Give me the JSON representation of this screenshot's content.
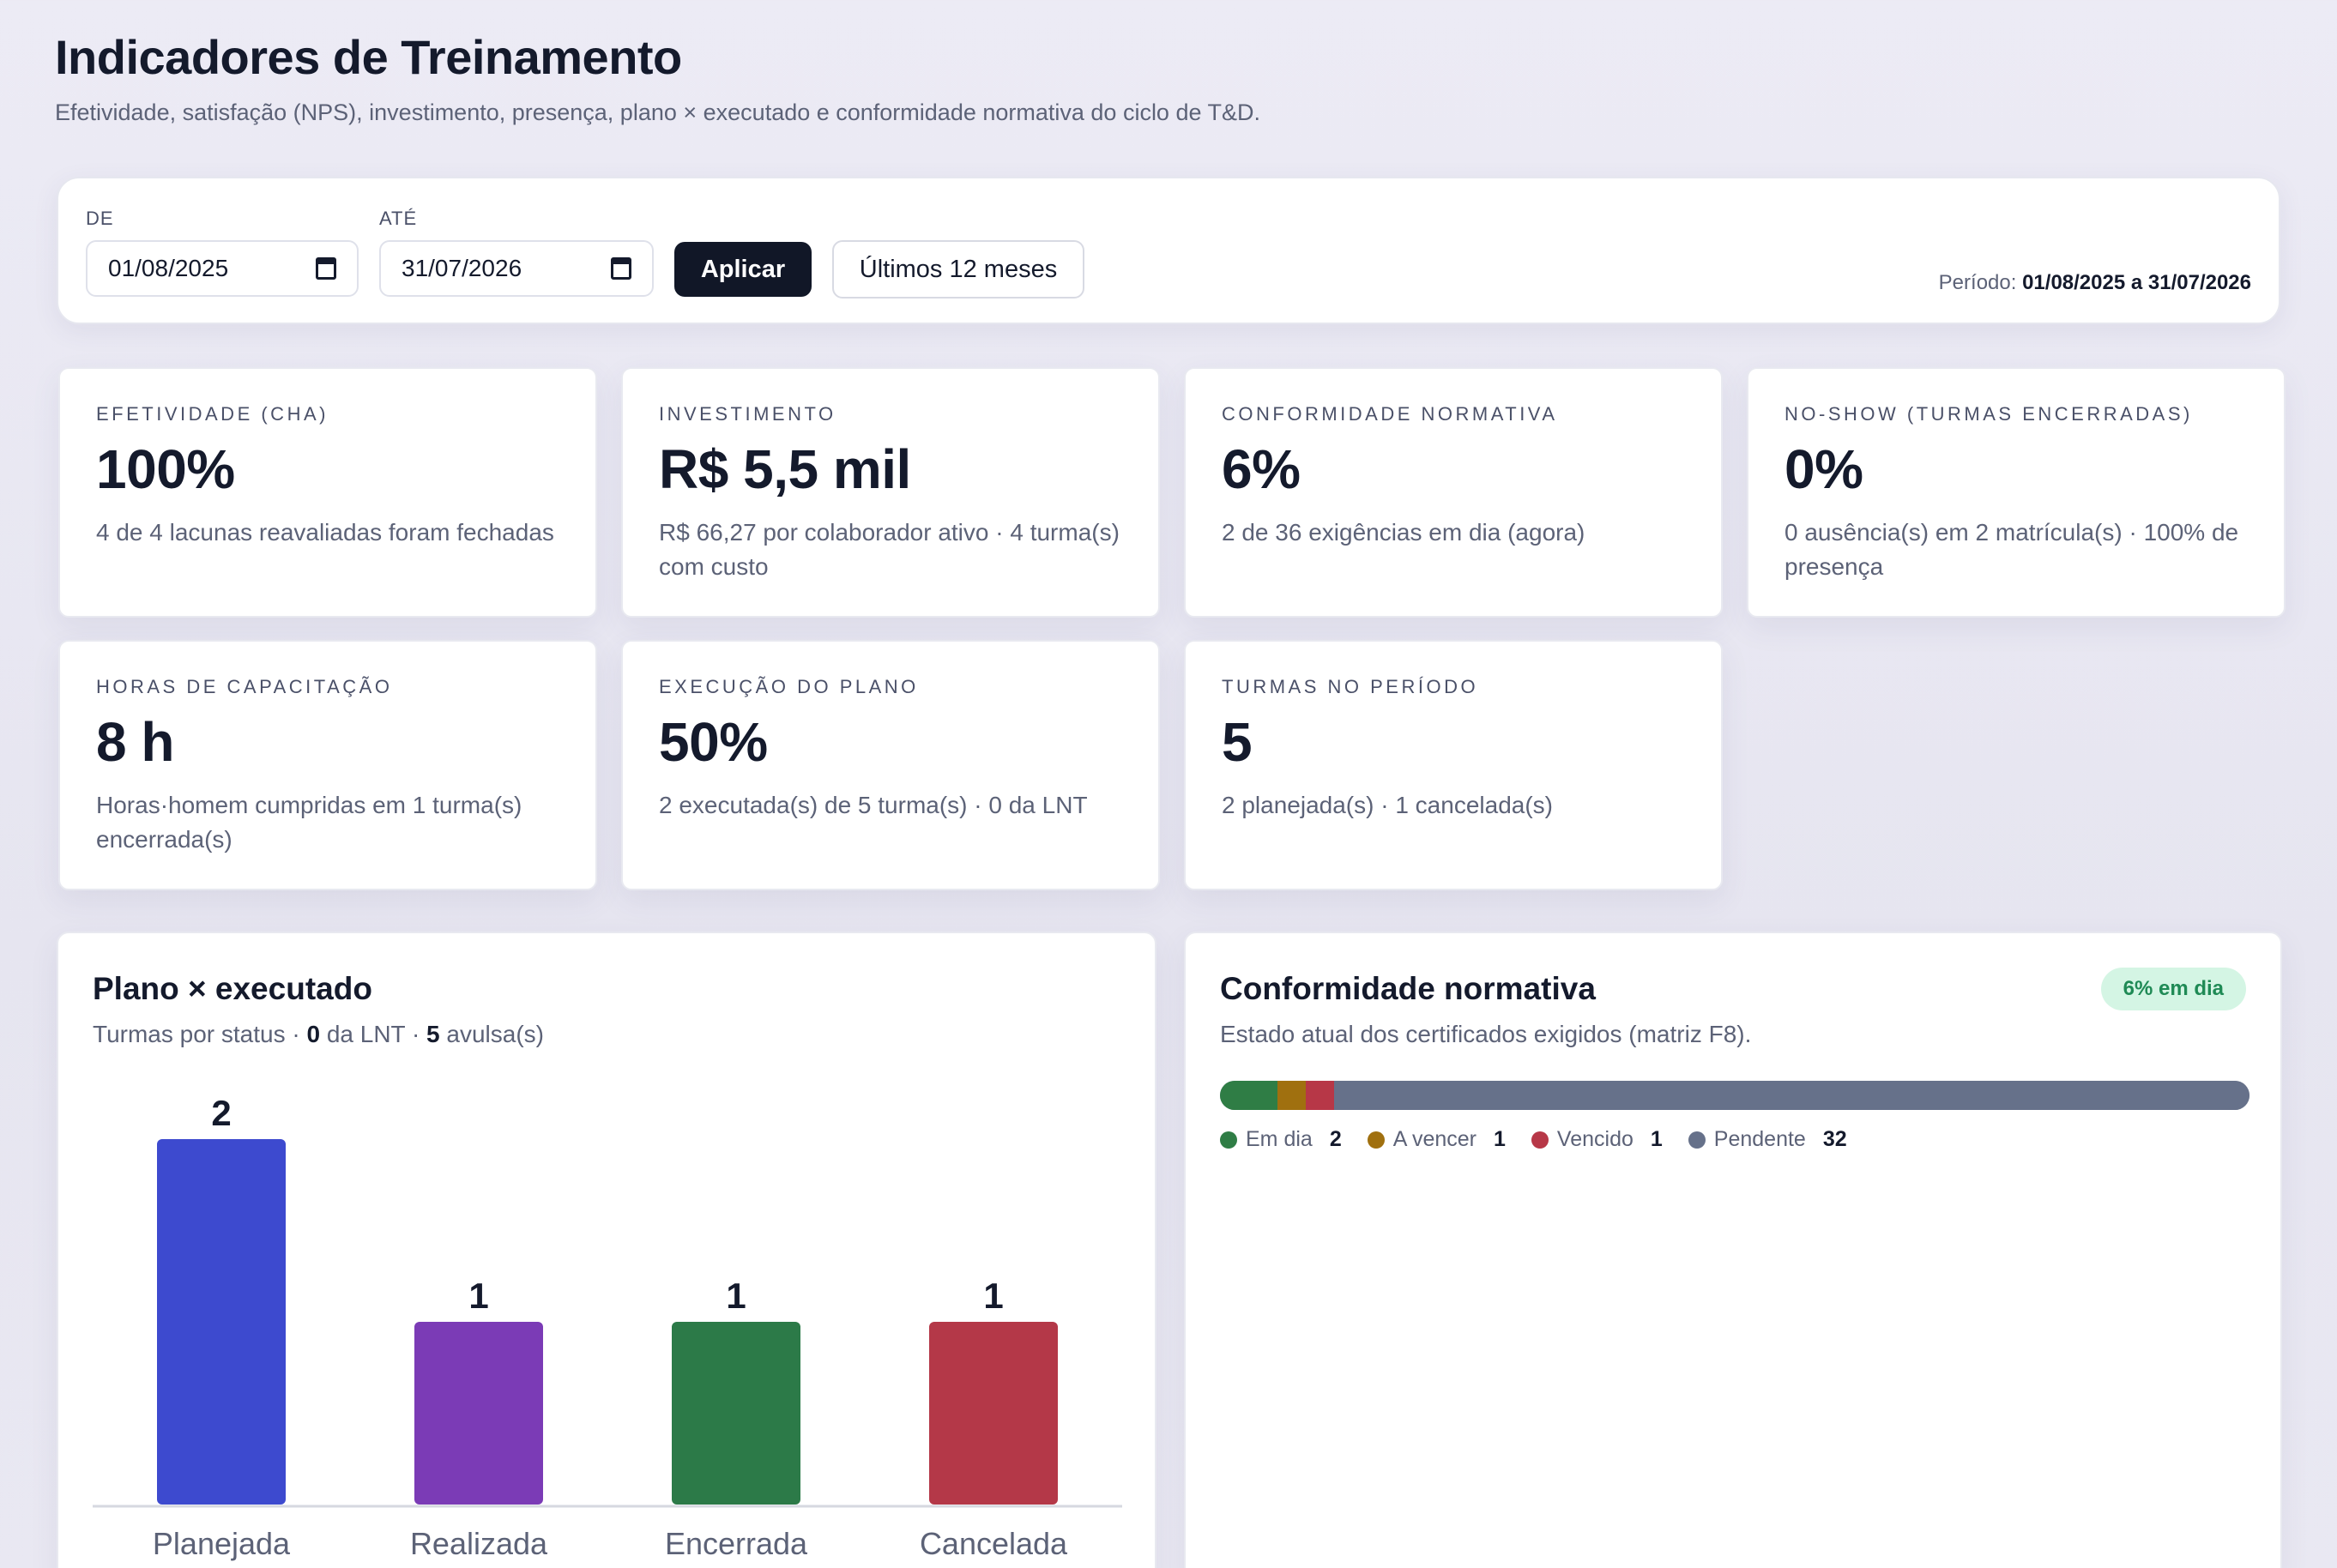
{
  "header": {
    "title": "Indicadores de Treinamento",
    "subtitle": "Efetividade, satisfação (NPS), investimento, presença, plano × executado e conformidade normativa do ciclo de T&D."
  },
  "filters": {
    "from_label": "DE",
    "from_value": "01/08/2025",
    "to_label": "ATÉ",
    "to_value": "31/07/2026",
    "apply_label": "Aplicar",
    "last12_label": "Últimos 12 meses",
    "period_prefix": "Período:",
    "period_value": "01/08/2025 a 31/07/2026"
  },
  "kpis": [
    {
      "label": "EFETIVIDADE (CHA)",
      "value": "100%",
      "desc": "4 de 4 lacunas reavaliadas foram fechadas"
    },
    {
      "label": "INVESTIMENTO",
      "value": "R$ 5,5 mil",
      "desc": "R$ 66,27 por colaborador ativo · 4 turma(s) com custo"
    },
    {
      "label": "CONFORMIDADE NORMATIVA",
      "value": "6%",
      "desc": "2 de 36 exigências em dia (agora)"
    },
    {
      "label": "NO-SHOW (TURMAS ENCERRADAS)",
      "value": "0%",
      "desc": "0 ausência(s) em 2 matrícula(s) · 100% de presença"
    },
    {
      "label": "HORAS DE CAPACITAÇÃO",
      "value": "8 h",
      "desc": "Horas·homem cumpridas em 1 turma(s) encerrada(s)"
    },
    {
      "label": "EXECUÇÃO DO PLANO",
      "value": "50%",
      "desc": "2 executada(s) de 5 turma(s) · 0 da LNT"
    },
    {
      "label": "TURMAS NO PERÍODO",
      "value": "5",
      "desc": "2 planejada(s) · 1 cancelada(s)"
    }
  ],
  "plan_panel": {
    "title": "Plano × executado",
    "sub_prefix": "Turmas por status ·",
    "lnt_count": "0",
    "lnt_text": "da LNT ·",
    "avulsa_count": "5",
    "avulsa_text": "avulsa(s)"
  },
  "chart_data": {
    "type": "bar",
    "categories": [
      "Planejada",
      "Realizada",
      "Encerrada",
      "Cancelada"
    ],
    "values": [
      2,
      1,
      1,
      1
    ],
    "colors": [
      "#3d4acf",
      "#7b3bb6",
      "#2c7a48",
      "#b43848"
    ],
    "title": "",
    "xlabel": "",
    "ylabel": "",
    "ylim": [
      0,
      2
    ],
    "grid": false
  },
  "conformity_panel": {
    "title": "Conformidade normativa",
    "sub": "Estado atual dos certificados exigidos (matriz F8).",
    "badge": "6% em dia",
    "segments": [
      {
        "label": "Em dia",
        "count": 2,
        "color": "#2f7d45"
      },
      {
        "label": "A vencer",
        "count": 1,
        "color": "#a0700f"
      },
      {
        "label": "Vencido",
        "count": 1,
        "color": "#b73747"
      },
      {
        "label": "Pendente",
        "count": 32,
        "color": "#66718a"
      }
    ]
  }
}
